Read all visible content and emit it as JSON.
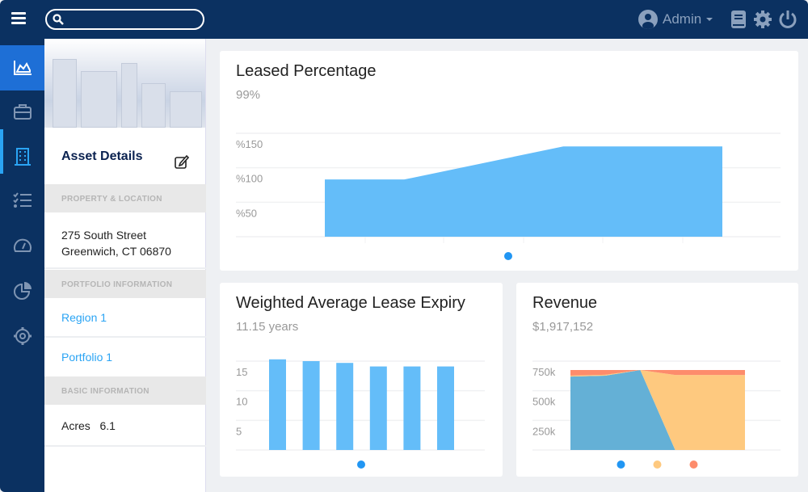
{
  "topbar": {
    "user": "Admin",
    "search_placeholder": ""
  },
  "sidebar": {
    "items": [
      "analytics",
      "portfolio",
      "assets",
      "tasks",
      "dashboard",
      "reports",
      "settings"
    ],
    "active": "analytics",
    "selected": "assets"
  },
  "panel": {
    "title": "Asset Details",
    "sections": [
      {
        "header": "PROPERTY & LOCATION",
        "lines": [
          "275 South Street",
          "Greenwich, CT 06870"
        ]
      },
      {
        "header": "PORTFOLIO INFORMATION",
        "links": [
          "Region 1",
          "Portfolio 1"
        ]
      },
      {
        "header": "BASIC INFORMATION",
        "field": {
          "label": "Acres",
          "value": "6.1"
        }
      }
    ]
  },
  "colors": {
    "nav": "#0b3161",
    "accent": "#2aa4f4",
    "series_blue": "#64b0d6",
    "series_orange": "#fec97f",
    "series_red": "#fd8c6c"
  },
  "chart_data": [
    {
      "type": "area",
      "title": "Leased Percentage",
      "subtitle": "99%",
      "yticks": [
        "%50",
        "%100",
        "%150"
      ],
      "ytick_values": [
        50,
        100,
        150
      ],
      "ylim": [
        0,
        150
      ],
      "grid": true,
      "values": [
        83,
        83,
        107,
        131,
        131,
        131
      ],
      "legend_colors": [
        "#2196f3"
      ]
    },
    {
      "type": "bar",
      "title": "Weighted Average Lease Expiry",
      "subtitle": "11.15 years",
      "yticks": [
        "5",
        "10",
        "15"
      ],
      "ytick_values": [
        5,
        10,
        15
      ],
      "ylim": [
        0,
        15
      ],
      "grid": true,
      "values": [
        15.3,
        15.0,
        14.7,
        14.1,
        14.1,
        14.1
      ],
      "legend_colors": [
        "#2196f3"
      ]
    },
    {
      "type": "area",
      "stacked": true,
      "title": "Revenue",
      "subtitle": "$1,917,152",
      "yticks": [
        "250k",
        "500k",
        "750k"
      ],
      "ytick_values": [
        250000,
        500000,
        750000
      ],
      "ylim": [
        0,
        750000
      ],
      "grid": true,
      "series": [
        {
          "color": "#64b0d6",
          "values": [
            620000,
            627000,
            675000,
            0,
            0,
            0
          ]
        },
        {
          "color": "#fec97f",
          "values": [
            8000,
            8000,
            0,
            633000,
            633000,
            633000
          ]
        },
        {
          "color": "#fd8c6c",
          "values": [
            47000,
            40000,
            0,
            42000,
            42000,
            42000
          ]
        }
      ],
      "legend_colors": [
        "#2196f3",
        "#fec97f",
        "#fd8c6c"
      ]
    }
  ]
}
